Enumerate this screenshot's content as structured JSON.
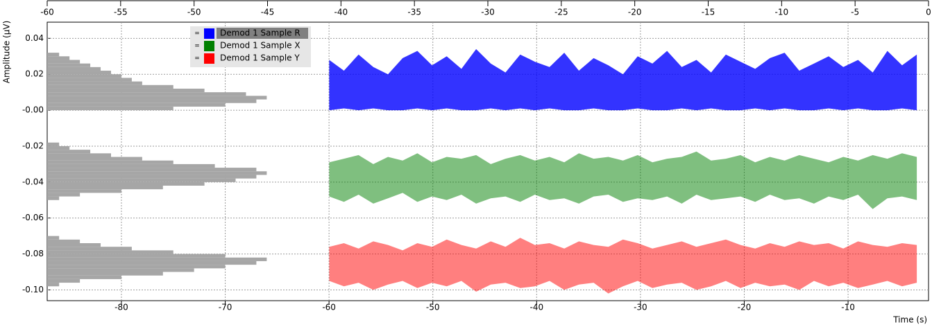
{
  "chart_data": {
    "type": "band",
    "y_label": "Amplitude (µV)",
    "x_label": "Time (s)",
    "ylim": [
      -0.106,
      0.049
    ],
    "yticks": [
      0.04,
      0.02,
      {
        "value": 0,
        "label": "-0.00"
      },
      -0.02,
      -0.04,
      -0.06,
      -0.08,
      {
        "value": -0.1,
        "label": "-0.10"
      }
    ],
    "top_xlim": [
      -60,
      0
    ],
    "top_xticks": [
      -60,
      -55,
      -50,
      -45,
      -40,
      -35,
      -30,
      -25,
      -20,
      -15,
      -10,
      -5,
      0
    ],
    "xlim": [
      -87.15,
      -2.25
    ],
    "xticks": [
      -80,
      -70,
      -60,
      -50,
      -40,
      -30,
      -20,
      -10
    ],
    "grid": true,
    "x": [
      -40.8,
      -39.8,
      -38.8,
      -37.8,
      -36.8,
      -35.8,
      -34.8,
      -33.8,
      -32.8,
      -31.8,
      -30.8,
      -29.8,
      -28.8,
      -27.8,
      -26.8,
      -25.8,
      -24.8,
      -23.8,
      -22.8,
      -21.8,
      -20.8,
      -19.8,
      -18.8,
      -17.8,
      -16.8,
      -15.8,
      -14.8,
      -13.8,
      -12.8,
      -11.8,
      -10.8,
      -9.8,
      -8.8,
      -7.8,
      -6.8,
      -5.8,
      -4.8,
      -3.8,
      -2.8,
      -1.8,
      -0.8
    ],
    "series": [
      {
        "name": "Demod 1 Sample R",
        "color": "#0000ff",
        "opacity": 0.8,
        "high": [
          0.028,
          0.022,
          0.031,
          0.024,
          0.02,
          0.029,
          0.033,
          0.025,
          0.03,
          0.023,
          0.034,
          0.026,
          0.021,
          0.031,
          0.027,
          0.024,
          0.032,
          0.022,
          0.029,
          0.025,
          0.02,
          0.03,
          0.026,
          0.033,
          0.024,
          0.028,
          0.021,
          0.031,
          0.027,
          0.023,
          0.029,
          0.032,
          0.022,
          0.026,
          0.03,
          0.024,
          0.028,
          0.021,
          0.033,
          0.025,
          0.031
        ],
        "low": [
          0,
          0.001,
          0,
          0.001,
          0,
          0,
          0.001,
          0,
          0.001,
          0,
          0,
          0.001,
          0,
          0.001,
          0,
          0.001,
          0,
          0,
          0.001,
          0,
          0,
          0.001,
          0,
          0,
          0.001,
          0,
          0.001,
          0,
          0,
          0.001,
          0,
          0.001,
          0,
          0,
          0.001,
          0,
          0.001,
          0,
          0,
          0.001,
          0
        ]
      },
      {
        "name": "Demod 1 Sample X",
        "color": "#008000",
        "opacity": 0.5,
        "high": [
          -0.029,
          -0.027,
          -0.025,
          -0.03,
          -0.026,
          -0.028,
          -0.024,
          -0.029,
          -0.026,
          -0.027,
          -0.025,
          -0.03,
          -0.027,
          -0.025,
          -0.028,
          -0.026,
          -0.029,
          -0.024,
          -0.027,
          -0.026,
          -0.028,
          -0.025,
          -0.029,
          -0.027,
          -0.026,
          -0.023,
          -0.028,
          -0.027,
          -0.025,
          -0.029,
          -0.026,
          -0.028,
          -0.025,
          -0.027,
          -0.029,
          -0.026,
          -0.028,
          -0.025,
          -0.027,
          -0.024,
          -0.026
        ],
        "low": [
          -0.048,
          -0.051,
          -0.047,
          -0.052,
          -0.049,
          -0.046,
          -0.051,
          -0.048,
          -0.05,
          -0.047,
          -0.052,
          -0.049,
          -0.048,
          -0.051,
          -0.047,
          -0.05,
          -0.049,
          -0.052,
          -0.048,
          -0.047,
          -0.051,
          -0.049,
          -0.05,
          -0.048,
          -0.052,
          -0.047,
          -0.05,
          -0.049,
          -0.048,
          -0.051,
          -0.047,
          -0.05,
          -0.049,
          -0.052,
          -0.048,
          -0.05,
          -0.047,
          -0.055,
          -0.049,
          -0.048,
          -0.05
        ]
      },
      {
        "name": "Demod 1 Sample Y",
        "color": "#ff0000",
        "opacity": 0.5,
        "high": [
          -0.076,
          -0.074,
          -0.077,
          -0.073,
          -0.075,
          -0.078,
          -0.074,
          -0.076,
          -0.072,
          -0.075,
          -0.077,
          -0.073,
          -0.076,
          -0.071,
          -0.075,
          -0.074,
          -0.077,
          -0.073,
          -0.075,
          -0.076,
          -0.072,
          -0.074,
          -0.077,
          -0.075,
          -0.073,
          -0.076,
          -0.074,
          -0.072,
          -0.075,
          -0.077,
          -0.074,
          -0.076,
          -0.073,
          -0.075,
          -0.074,
          -0.077,
          -0.073,
          -0.075,
          -0.076,
          -0.074,
          -0.075
        ],
        "low": [
          -0.095,
          -0.098,
          -0.096,
          -0.1,
          -0.097,
          -0.095,
          -0.099,
          -0.096,
          -0.098,
          -0.095,
          -0.101,
          -0.097,
          -0.096,
          -0.099,
          -0.098,
          -0.095,
          -0.1,
          -0.097,
          -0.096,
          -0.102,
          -0.098,
          -0.095,
          -0.099,
          -0.097,
          -0.096,
          -0.1,
          -0.098,
          -0.095,
          -0.099,
          -0.096,
          -0.098,
          -0.097,
          -0.1,
          -0.095,
          -0.098,
          -0.096,
          -0.099,
          -0.097,
          -0.095,
          -0.098,
          -0.096
        ]
      }
    ],
    "histograms": [
      {
        "color": "#a6a6a6",
        "bins": [
          0,
          0.002,
          0.004,
          0.006,
          0.008,
          0.01,
          0.012,
          0.014,
          0.016,
          0.018,
          0.02,
          0.022,
          0.024,
          0.026,
          0.028,
          0.03,
          0.032
        ],
        "values": [
          -75,
          -70,
          -67,
          -66,
          -68,
          -72,
          -75,
          -78,
          -79,
          -80,
          -81,
          -82,
          -83,
          -84,
          -85,
          -86
        ]
      },
      {
        "color": "#a6a6a6",
        "bins": [
          -0.05,
          -0.048,
          -0.046,
          -0.044,
          -0.042,
          -0.04,
          -0.038,
          -0.036,
          -0.034,
          -0.032,
          -0.03,
          -0.028,
          -0.026,
          -0.024,
          -0.022,
          -0.02,
          -0.018
        ],
        "values": [
          -86,
          -84,
          -80,
          -76,
          -72,
          -69,
          -67,
          -66,
          -67,
          -71,
          -75,
          -78,
          -81,
          -83,
          -85,
          -86
        ]
      },
      {
        "color": "#a6a6a6",
        "bins": [
          -0.098,
          -0.096,
          -0.094,
          -0.092,
          -0.09,
          -0.088,
          -0.086,
          -0.084,
          -0.082,
          -0.08,
          -0.078,
          -0.076,
          -0.074,
          -0.072,
          -0.07
        ],
        "values": [
          -86,
          -84,
          -80,
          -76,
          -73,
          -70,
          -67,
          -66,
          -70,
          -75,
          -79,
          -82,
          -84,
          -86
        ]
      }
    ]
  }
}
